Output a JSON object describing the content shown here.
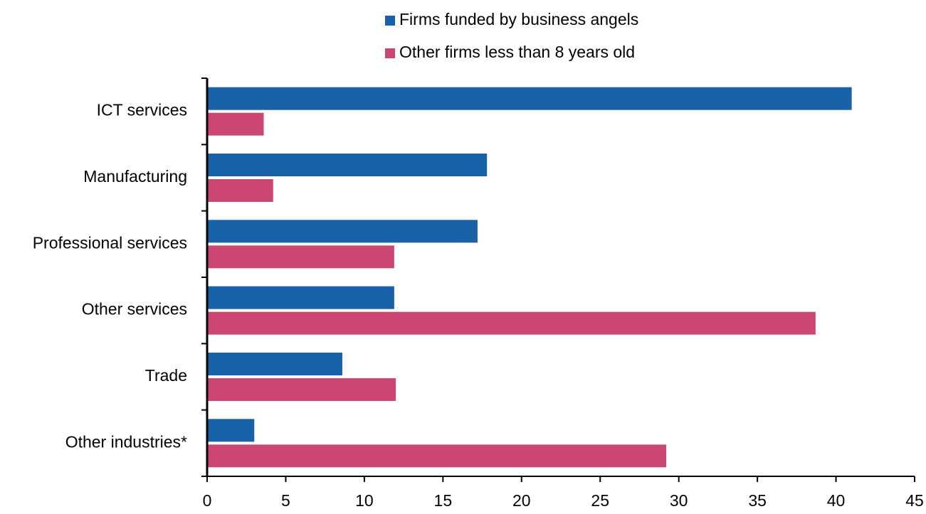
{
  "chart_data": {
    "type": "hbar",
    "categories": [
      "ICT services",
      "Manufacturing",
      "Professional services",
      "Other services",
      "Trade",
      "Other industries*"
    ],
    "series": [
      {
        "name": "Firms funded by business angels",
        "color": "#1a62a8",
        "values": [
          41.0,
          17.8,
          17.2,
          11.9,
          8.6,
          3.0
        ]
      },
      {
        "name": "Other firms less than 8 years old",
        "color": "#cc4672",
        "values": [
          3.6,
          4.2,
          11.9,
          38.7,
          12.0,
          29.2
        ]
      }
    ],
    "xlim": [
      0,
      45
    ],
    "xticks": [
      0,
      5,
      10,
      15,
      20,
      25,
      30,
      35,
      40,
      45
    ],
    "grid": false
  }
}
